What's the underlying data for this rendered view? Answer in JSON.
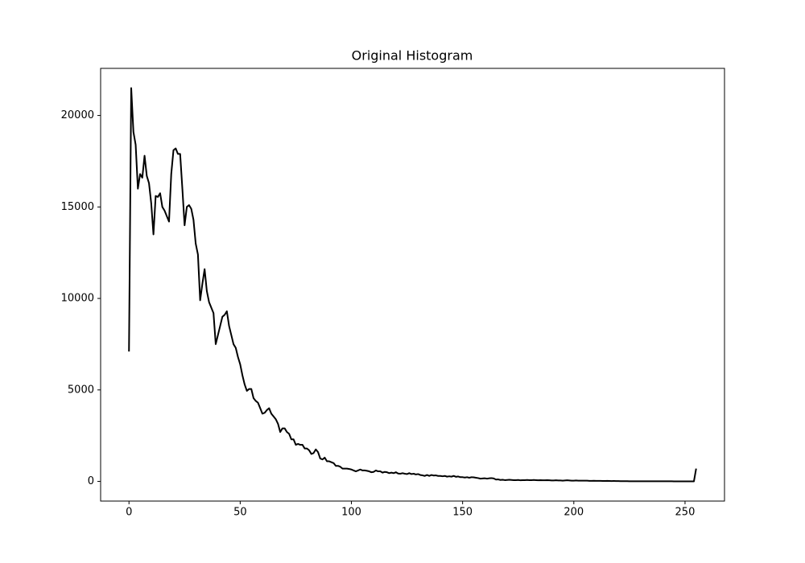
{
  "chart_data": {
    "type": "line",
    "title": "Original Histogram",
    "x": [
      0,
      1,
      2,
      3,
      4,
      5,
      6,
      7,
      8,
      9,
      10,
      11,
      12,
      13,
      14,
      15,
      16,
      17,
      18,
      19,
      20,
      21,
      22,
      23,
      24,
      25,
      26,
      27,
      28,
      29,
      30,
      31,
      32,
      33,
      34,
      35,
      36,
      37,
      38,
      39,
      40,
      41,
      42,
      43,
      44,
      45,
      46,
      47,
      48,
      49,
      50,
      51,
      52,
      53,
      54,
      55,
      56,
      57,
      58,
      59,
      60,
      61,
      62,
      63,
      64,
      65,
      66,
      67,
      68,
      69,
      70,
      71,
      72,
      73,
      74,
      75,
      76,
      77,
      78,
      79,
      80,
      81,
      82,
      83,
      84,
      85,
      86,
      87,
      88,
      89,
      90,
      91,
      92,
      93,
      94,
      95,
      96,
      97,
      98,
      99,
      100,
      101,
      102,
      103,
      104,
      105,
      106,
      107,
      108,
      109,
      110,
      111,
      112,
      113,
      114,
      115,
      116,
      117,
      118,
      119,
      120,
      121,
      122,
      123,
      124,
      125,
      126,
      127,
      128,
      129,
      130,
      131,
      132,
      133,
      134,
      135,
      136,
      137,
      138,
      139,
      140,
      141,
      142,
      143,
      144,
      145,
      146,
      147,
      148,
      149,
      150,
      151,
      152,
      153,
      154,
      155,
      156,
      157,
      158,
      159,
      160,
      161,
      162,
      163,
      164,
      165,
      166,
      167,
      168,
      169,
      170,
      171,
      172,
      173,
      174,
      175,
      176,
      177,
      178,
      179,
      180,
      181,
      182,
      183,
      184,
      185,
      186,
      187,
      188,
      189,
      190,
      191,
      192,
      193,
      194,
      195,
      196,
      197,
      198,
      199,
      200,
      201,
      202,
      203,
      204,
      205,
      206,
      207,
      208,
      209,
      210,
      211,
      212,
      213,
      214,
      215,
      216,
      217,
      218,
      219,
      220,
      221,
      222,
      223,
      224,
      225,
      226,
      227,
      228,
      229,
      230,
      231,
      232,
      233,
      234,
      235,
      236,
      237,
      238,
      239,
      240,
      241,
      242,
      243,
      244,
      245,
      246,
      247,
      248,
      249,
      250,
      251,
      252,
      253,
      254,
      255
    ],
    "values": [
      7100,
      21500,
      19100,
      18400,
      16000,
      16800,
      16600,
      17800,
      16700,
      16300,
      15200,
      13500,
      15600,
      15550,
      15750,
      15000,
      14800,
      14500,
      14200,
      16800,
      18100,
      18200,
      17900,
      17900,
      16000,
      14000,
      15000,
      15100,
      14900,
      14300,
      13000,
      12400,
      9900,
      10800,
      11600,
      10400,
      9800,
      9500,
      9200,
      7500,
      8000,
      8500,
      9000,
      9100,
      9300,
      8500,
      8000,
      7500,
      7300,
      6800,
      6400,
      5800,
      5300,
      4950,
      5050,
      5050,
      4550,
      4400,
      4300,
      4000,
      3700,
      3750,
      3900,
      4000,
      3700,
      3550,
      3400,
      3150,
      2700,
      2900,
      2900,
      2700,
      2600,
      2300,
      2300,
      2000,
      2050,
      2000,
      2000,
      1800,
      1800,
      1700,
      1500,
      1550,
      1750,
      1600,
      1250,
      1200,
      1300,
      1100,
      1100,
      1050,
      1000,
      850,
      850,
      800,
      700,
      700,
      700,
      680,
      650,
      600,
      550,
      600,
      650,
      600,
      600,
      580,
      550,
      500,
      520,
      600,
      550,
      550,
      480,
      520,
      500,
      450,
      480,
      450,
      500,
      430,
      420,
      450,
      420,
      400,
      450,
      400,
      420,
      380,
      400,
      350,
      330,
      300,
      350,
      300,
      350,
      320,
      330,
      300,
      300,
      280,
      300,
      260,
      280,
      260,
      300,
      250,
      270,
      230,
      230,
      210,
      230,
      200,
      230,
      220,
      200,
      180,
      150,
      160,
      170,
      150,
      170,
      180,
      160,
      100,
      110,
      80,
      90,
      70,
      80,
      90,
      80,
      70,
      70,
      80,
      60,
      70,
      70,
      80,
      70,
      70,
      80,
      70,
      60,
      70,
      60,
      60,
      70,
      60,
      50,
      50,
      60,
      50,
      50,
      40,
      50,
      60,
      50,
      40,
      40,
      50,
      40,
      40,
      40,
      40,
      40,
      30,
      30,
      35,
      30,
      30,
      30,
      25,
      25,
      30,
      25,
      20,
      25,
      20,
      20,
      15,
      15,
      15,
      15,
      10,
      10,
      10,
      10,
      10,
      10,
      10,
      8,
      8,
      8,
      8,
      6,
      6,
      6,
      5,
      5,
      5,
      5,
      5,
      5,
      4,
      4,
      4,
      4,
      3,
      3,
      3,
      3,
      3,
      3,
      700
    ],
    "color": "#000000",
    "xlim": [
      -12.75,
      267.75
    ],
    "xticks": [
      0,
      50,
      100,
      150,
      200,
      250
    ],
    "ylim": [
      -1075,
      22575
    ],
    "yticks": [
      0,
      5000,
      10000,
      15000,
      20000
    ]
  }
}
